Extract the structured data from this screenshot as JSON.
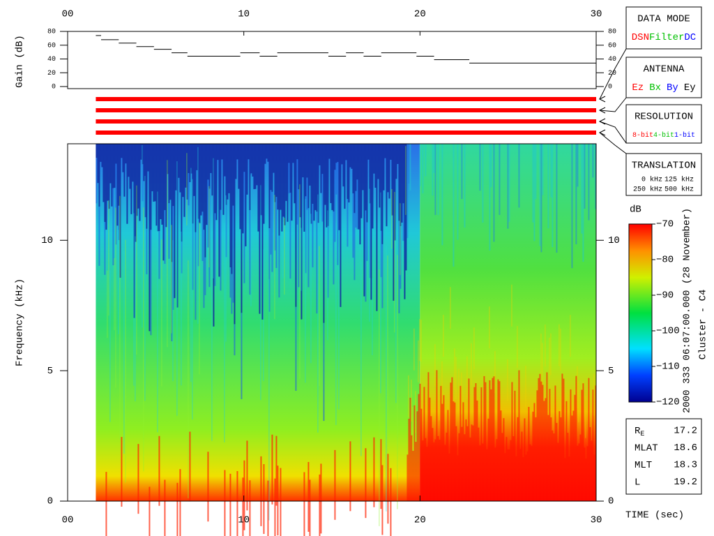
{
  "chart_data": [
    {
      "type": "step",
      "ylabel": "Gain (dB)",
      "xlim": [
        0,
        30
      ],
      "xticks": [
        {
          "value": 0,
          "label": "00"
        },
        10,
        20,
        30
      ],
      "ylim": [
        0,
        80
      ],
      "yticks": [
        0,
        20,
        40,
        60,
        80
      ],
      "x": [
        1.6,
        1.9,
        2.9,
        3.9,
        4.9,
        5.9,
        6.8,
        9.8,
        10.9,
        11.9,
        14.8,
        15.8,
        16.8,
        17.8,
        19.8,
        20.8,
        22.8
      ],
      "values": [
        74,
        68,
        63,
        58,
        54,
        49,
        44,
        49,
        44,
        49,
        44,
        49,
        44,
        49,
        44,
        39,
        34
      ],
      "color": "#000000"
    },
    {
      "type": "spectrogram",
      "xlabel": "TIME (sec)",
      "ylabel": "Frequency (kHz)",
      "xlim": [
        0,
        30
      ],
      "xticks": [
        {
          "value": 0,
          "label": "00"
        },
        10,
        20,
        30
      ],
      "ylim": [
        0,
        13.7
      ],
      "yticks": [
        0,
        5,
        10
      ],
      "zlabel": "dB",
      "zlim": [
        -120,
        -70
      ],
      "zticks": [
        {
          "value": -120,
          "label": "−120"
        },
        {
          "value": -110,
          "label": "−110"
        },
        {
          "value": -100,
          "label": "−100"
        },
        {
          "value": -90,
          "label": "−90"
        },
        {
          "value": -80,
          "label": "−80"
        },
        {
          "value": -70,
          "label": "−70"
        }
      ]
    }
  ],
  "annotations": {
    "time": "2000 333 06:07:00.000 (28 November)",
    "spacecraft": "Cluster - C4"
  },
  "panels": [
    {
      "title": "DATA MODE",
      "items": [
        {
          "text": "DSN",
          "color": "#ff0000"
        },
        {
          "text": "Filter",
          "color": "#00c000"
        },
        {
          "text": "DC",
          "color": "#0000ff"
        }
      ]
    },
    {
      "title": "ANTENNA",
      "items": [
        {
          "text": "Ez",
          "color": "#ff0000"
        },
        {
          "text": "Bx",
          "color": "#00c000"
        },
        {
          "text": "By",
          "color": "#0000ff"
        },
        {
          "text": "Ey",
          "color": "#000000"
        }
      ]
    },
    {
      "title": "RESOLUTION",
      "items": [
        {
          "text": "8-bit",
          "color": "#ff0000"
        },
        {
          "text": "4-bit",
          "color": "#00c000"
        },
        {
          "text": "1-bit",
          "color": "#0000ff"
        }
      ]
    },
    {
      "title": "TRANSLATION",
      "items": [
        {
          "text": "0 kHz",
          "color": "#ff0000"
        },
        {
          "text": "125 kHz",
          "color": "#00c000"
        },
        {
          "text": "250 kHz",
          "color": "#0000ff"
        },
        {
          "text": "500 kHz",
          "color": "#000000"
        }
      ]
    }
  ],
  "info": [
    {
      "label": "R",
      "sub": "E",
      "value": "17.2"
    },
    {
      "label": "MLAT",
      "value": "18.6"
    },
    {
      "label": "MLT",
      "value": "18.3"
    },
    {
      "label": "L",
      "value": "19.2"
    }
  ]
}
